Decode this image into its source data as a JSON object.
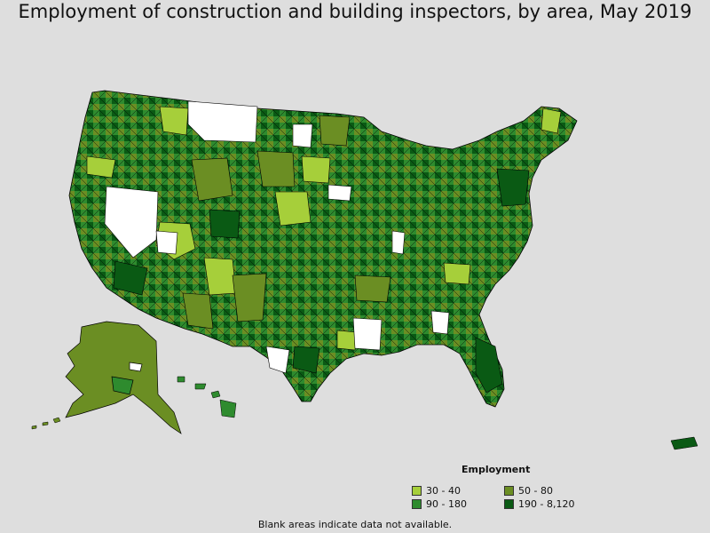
{
  "title": "Employment of construction and building inspectors, by area, May 2019",
  "legend": {
    "title": "Employment",
    "items": [
      {
        "label": "30 - 40",
        "color": "#a6cf3a"
      },
      {
        "label": "50 - 80",
        "color": "#6b8e23"
      },
      {
        "label": "90 - 180",
        "color": "#2e8b2e"
      },
      {
        "label": "190 - 8,120",
        "color": "#0a5a14"
      }
    ]
  },
  "footnote": "Blank areas indicate data not available.",
  "colors": {
    "background": "#dedede",
    "no_data": "#ffffff",
    "border": "#000000"
  }
}
